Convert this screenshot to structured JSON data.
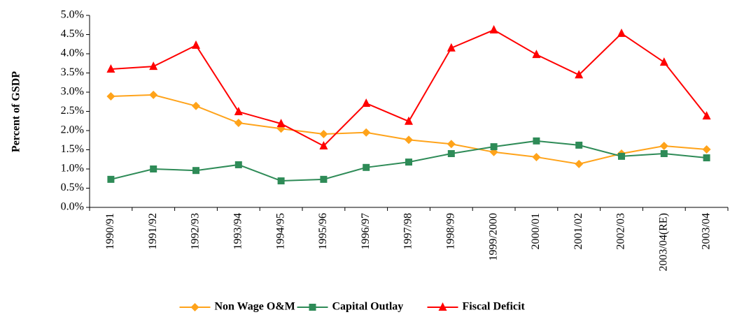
{
  "chart_data": {
    "type": "line",
    "y_label": "Percent of GSDP",
    "categories": [
      "1990/91",
      "1991/92",
      "1992/93",
      "1993/94",
      "1994/95",
      "1995/96",
      "1996/97",
      "1997/98",
      "1998/99",
      "1999/2000",
      "2000/01",
      "2001/02",
      "2002/03",
      "2003/04(RE)",
      "2003/04"
    ],
    "series": [
      {
        "name": "Non Wage O&M",
        "color": "#ffa31a",
        "marker": "diamond",
        "values": [
          2.89,
          2.93,
          2.64,
          2.2,
          2.05,
          1.91,
          1.95,
          1.76,
          1.65,
          1.44,
          1.31,
          1.13,
          1.4,
          1.6,
          1.51
        ]
      },
      {
        "name": "Capital Outlay",
        "color": "#2e8b57",
        "marker": "square",
        "values": [
          0.73,
          1.0,
          0.96,
          1.11,
          0.69,
          0.73,
          1.04,
          1.18,
          1.4,
          1.58,
          1.73,
          1.62,
          1.33,
          1.4,
          1.29
        ]
      },
      {
        "name": "Fiscal Deficit",
        "color": "#ff0000",
        "marker": "triangle",
        "values": [
          3.6,
          3.67,
          4.22,
          2.49,
          2.18,
          1.6,
          2.71,
          2.24,
          4.15,
          4.62,
          3.98,
          3.45,
          4.53,
          3.78,
          2.38
        ]
      }
    ],
    "ylim": [
      0,
      5
    ],
    "yticks": [
      {
        "value": 0,
        "label": "0.0%"
      },
      {
        "value": 0.5,
        "label": "0.5%"
      },
      {
        "value": 1,
        "label": "1.0%"
      },
      {
        "value": 1.5,
        "label": "1.5%"
      },
      {
        "value": 2,
        "label": "2.0%"
      },
      {
        "value": 2.5,
        "label": "2.5%"
      },
      {
        "value": 3,
        "label": "3.0%"
      },
      {
        "value": 3.5,
        "label": "3.5%"
      },
      {
        "value": 4,
        "label": "4.0%"
      },
      {
        "value": 4.5,
        "label": "4.5%"
      },
      {
        "value": 5,
        "label": "5.0%"
      }
    ],
    "legend": "bottom"
  }
}
